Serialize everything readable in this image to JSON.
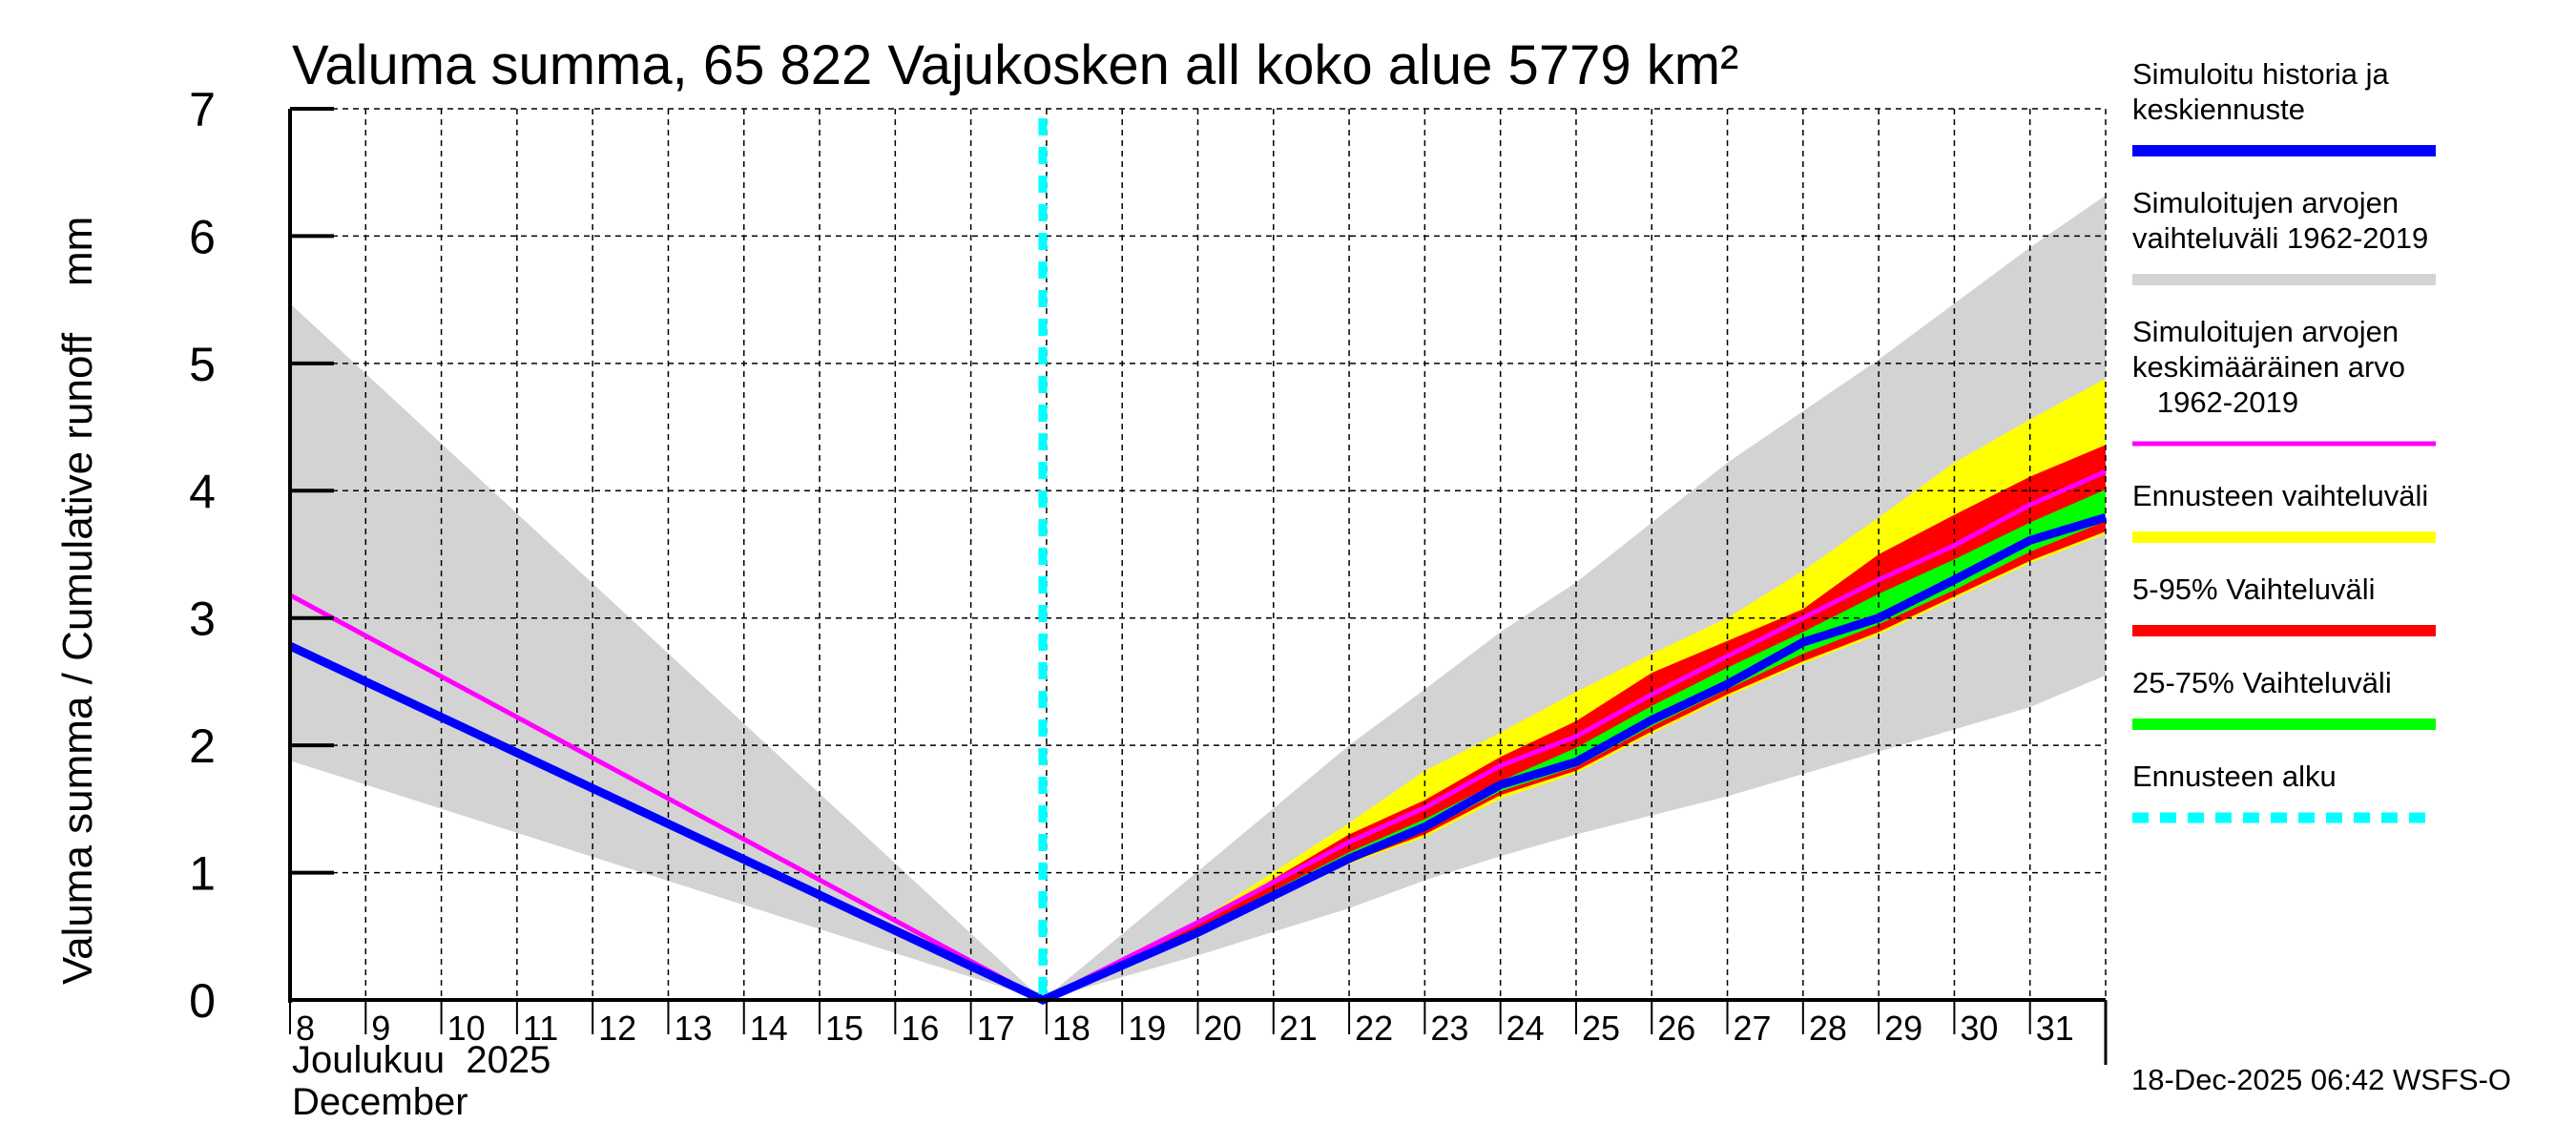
{
  "chart_data": {
    "type": "area",
    "title": "Valuma summa, 65 822 Vajukosken all koko alue 5779 km²",
    "ylabel": "Valuma summa / Cumulative runoff    mm",
    "xlabel_line1": "Joulukuu  2025",
    "xlabel_line2": "December",
    "ylim": [
      0,
      7
    ],
    "xlim": [
      8,
      32
    ],
    "yticks": [
      "0",
      "1",
      "2",
      "3",
      "4",
      "5",
      "6",
      "7"
    ],
    "xticks": [
      "8",
      "9",
      "10",
      "11",
      "12",
      "13",
      "14",
      "15",
      "16",
      "17",
      "18",
      "19",
      "20",
      "21",
      "22",
      "23",
      "24",
      "25",
      "26",
      "27",
      "28",
      "29",
      "30",
      "31"
    ],
    "grid": true,
    "forecast_start_day": 17.95,
    "footer": "18-Dec-2025 06:42 WSFS-O",
    "legend_position": "right",
    "legend": [
      {
        "lines": [
          "Simuloitu historia ja",
          "keskiennuste"
        ],
        "color": "#0000ff",
        "style": "thick"
      },
      {
        "lines": [
          "Simuloitujen arvojen",
          "vaihteluväli 1962-2019"
        ],
        "color": "#d3d3d3",
        "style": "thick"
      },
      {
        "lines": [
          "Simuloitujen arvojen",
          "keskimääräinen arvo",
          "   1962-2019"
        ],
        "color": "#ff00ff",
        "style": "thin"
      },
      {
        "lines": [
          "Ennusteen vaihteluväli"
        ],
        "color": "#ffff00",
        "style": "thick"
      },
      {
        "lines": [
          "5-95% Vaihteluväli"
        ],
        "color": "#ff0000",
        "style": "thick"
      },
      {
        "lines": [
          "25-75% Vaihteluväli"
        ],
        "color": "#00ff00",
        "style": "thick"
      },
      {
        "lines": [
          "Ennusteen alku"
        ],
        "color": "#00ffff",
        "style": "dashed"
      }
    ],
    "series": {
      "hist_range": {
        "name": "Simuloitujen arvojen vaihteluväli 1962-2019",
        "color": "#d3d3d3",
        "x": [
          8,
          17.95,
          20,
          22,
          23,
          24,
          25,
          27,
          29,
          31,
          32
        ],
        "upper": [
          5.47,
          0.0,
          1.01,
          2.0,
          2.44,
          2.89,
          3.28,
          4.22,
          5.03,
          5.91,
          6.32
        ],
        "lower": [
          1.88,
          0.0,
          0.35,
          0.72,
          0.94,
          1.13,
          1.3,
          1.6,
          1.95,
          2.3,
          2.55
        ]
      },
      "forecast_range": {
        "name": "Ennusteen vaihteluväli",
        "color": "#ffff00",
        "x": [
          17.95,
          20,
          22,
          23,
          24,
          25,
          26,
          27,
          28,
          29,
          30,
          31,
          32
        ],
        "upper": [
          0.0,
          0.62,
          1.39,
          1.8,
          2.1,
          2.42,
          2.72,
          3.0,
          3.37,
          3.79,
          4.22,
          4.56,
          4.88
        ],
        "lower": [
          0.0,
          0.52,
          1.07,
          1.28,
          1.58,
          1.78,
          2.09,
          2.38,
          2.64,
          2.87,
          3.15,
          3.43,
          3.66
        ]
      },
      "p5_95": {
        "name": "5-95% Vaihteluväli",
        "color": "#ff0000",
        "x": [
          17.95,
          20,
          22,
          23,
          24,
          25,
          26,
          27,
          28,
          29,
          30,
          31,
          32
        ],
        "upper": [
          0.0,
          0.6,
          1.3,
          1.57,
          1.91,
          2.19,
          2.57,
          2.82,
          3.07,
          3.5,
          3.81,
          4.11,
          4.36
        ],
        "lower": [
          0.0,
          0.52,
          1.08,
          1.3,
          1.61,
          1.8,
          2.11,
          2.4,
          2.66,
          2.89,
          3.17,
          3.45,
          3.68
        ]
      },
      "p25_75": {
        "name": "25-75% Vaihteluväli",
        "color": "#00ff00",
        "x": [
          17.95,
          20,
          22,
          23,
          24,
          25,
          26,
          27,
          28,
          29,
          30,
          31,
          32
        ],
        "upper": [
          0.0,
          0.56,
          1.16,
          1.42,
          1.72,
          1.98,
          2.31,
          2.61,
          2.89,
          3.19,
          3.46,
          3.75,
          4.01
        ],
        "lower": [
          0.0,
          0.53,
          1.1,
          1.33,
          1.64,
          1.83,
          2.15,
          2.44,
          2.72,
          2.95,
          3.22,
          3.52,
          3.76
        ]
      },
      "hist_mean": {
        "name": "Simuloitujen arvojen keskimääräinen arvo 1962-2019",
        "color": "#ff00ff",
        "x": [
          8,
          17.95,
          20,
          22,
          23,
          24,
          25,
          26,
          27,
          28,
          29,
          30,
          31,
          32
        ],
        "y": [
          3.18,
          0.0,
          0.61,
          1.24,
          1.51,
          1.84,
          2.07,
          2.4,
          2.7,
          3.0,
          3.3,
          3.57,
          3.89,
          4.15
        ]
      },
      "simulated": {
        "name": "Simuloitu historia ja keskiennuste",
        "color": "#0000ff",
        "x": [
          8,
          17.95,
          20,
          22,
          23,
          24,
          25,
          26,
          27,
          28,
          29,
          30,
          31,
          32
        ],
        "y": [
          2.78,
          0.0,
          0.53,
          1.11,
          1.36,
          1.69,
          1.87,
          2.2,
          2.48,
          2.81,
          3.0,
          3.3,
          3.61,
          3.79
        ]
      }
    }
  }
}
